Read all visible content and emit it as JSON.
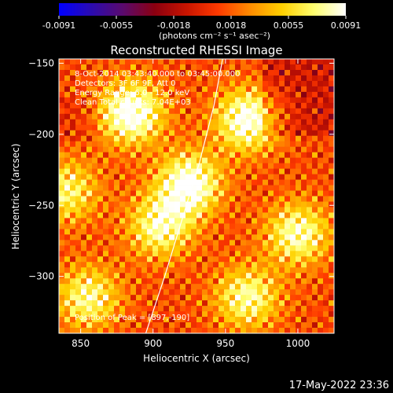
{
  "colorbar": {
    "ticks": [
      "-0.0091",
      "-0.0055",
      "-0.0018",
      "0.0018",
      "0.0055",
      "0.0091"
    ],
    "units_label": "(photons cm⁻² s⁻¹ asec⁻²)",
    "stops": [
      "#0000ff",
      "#2a0bb0",
      "#5a0a6e",
      "#8a0010",
      "#c81400",
      "#ff3a00",
      "#ff8c00",
      "#ffd000",
      "#ffff70",
      "#ffffff"
    ]
  },
  "footer_timestamp": "17-May-2022 23:36",
  "chart_data": {
    "type": "heatmap",
    "title": "Reconstructed RHESSI Image",
    "xlabel": "Heliocentric X (arcsec)",
    "ylabel": "Heliocentric Y (arcsec)",
    "xlim": [
      835,
      1025
    ],
    "ylim": [
      -340,
      -147
    ],
    "xticks": [
      850,
      900,
      950,
      1000
    ],
    "yticks": [
      -150,
      -200,
      -250,
      -300
    ],
    "xtick_labels": [
      "850",
      "900",
      "950",
      "1000"
    ],
    "ytick_labels": [
      "−150",
      "−200",
      "−250",
      "−300"
    ],
    "annotations": [
      "8-Oct-2014 03:43:40.000 to 03:45:00.000",
      "Detectors: 3F 6F 9F, Att 0",
      "Energy Range: 6.0 - 12.0 keV",
      "Clean    Total counts: 7.04E+03"
    ],
    "peak_label": "Position of Peak = [897,-190]",
    "peak": [
      897,
      -190
    ],
    "value_range": [
      -0.0091,
      0.0091
    ],
    "bright_sources": [
      {
        "x": 885,
        "y": -185,
        "value": 0.0091
      },
      {
        "x": 965,
        "y": -190,
        "value": 0.0085
      },
      {
        "x": 925,
        "y": -235,
        "value": 0.0088
      },
      {
        "x": 905,
        "y": -265,
        "value": 0.007
      },
      {
        "x": 1000,
        "y": -270,
        "value": 0.0072
      },
      {
        "x": 855,
        "y": -315,
        "value": 0.0065
      },
      {
        "x": 840,
        "y": -240,
        "value": 0.006
      },
      {
        "x": 965,
        "y": -315,
        "value": 0.0068
      }
    ],
    "limb_curve": [
      [
        948,
        -147
      ],
      [
        942,
        -180
      ],
      [
        932,
        -220
      ],
      [
        920,
        -260
      ],
      [
        908,
        -300
      ],
      [
        895,
        -340
      ]
    ]
  }
}
